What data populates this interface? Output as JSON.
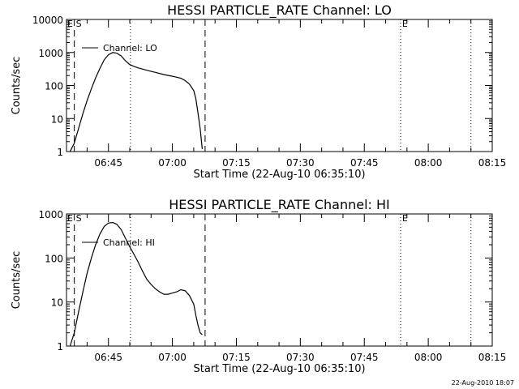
{
  "chart_data": [
    {
      "type": "line",
      "title": "HESSI PARTICLE_RATE Channel: LO",
      "xlabel": "Start Time (22-Aug-10 06:35:10)",
      "ylabel": "Counts/sec",
      "y_scale": "log",
      "ylim": [
        1,
        10000
      ],
      "y_ticks": [
        {
          "value": 1,
          "label": "1"
        },
        {
          "value": 10,
          "label": "10"
        },
        {
          "value": 100,
          "label": "100"
        },
        {
          "value": 1000,
          "label": "1000"
        },
        {
          "value": 10000,
          "label": "10000"
        }
      ],
      "xlim": [
        "06:35:10",
        "08:15:00"
      ],
      "x_ticks": [
        "06:45",
        "07:00",
        "07:15",
        "07:30",
        "07:45",
        "08:00",
        "08:15"
      ],
      "legend": {
        "label": "Channel: LO",
        "placement": "top-left"
      },
      "vlines": [
        {
          "time": "06:37:00",
          "style": "dashed",
          "label": "S"
        },
        {
          "time": "06:50:10",
          "style": "dotted",
          "label": ""
        },
        {
          "time": "07:07:40",
          "style": "dashed",
          "label": ""
        },
        {
          "time": "07:53:30",
          "style": "dotted",
          "label": "E"
        },
        {
          "time": "08:10:00",
          "style": "dotted",
          "label": ""
        }
      ],
      "corner_mark": "E",
      "series": [
        {
          "name": "Channel: LO",
          "points": [
            [
              "06:36:00",
              1
            ],
            [
              "06:37:00",
              1.8
            ],
            [
              "06:38:00",
              5
            ],
            [
              "06:39:00",
              14
            ],
            [
              "06:40:00",
              35
            ],
            [
              "06:41:00",
              80
            ],
            [
              "06:42:00",
              170
            ],
            [
              "06:43:00",
              330
            ],
            [
              "06:44:00",
              600
            ],
            [
              "06:45:00",
              850
            ],
            [
              "06:46:00",
              1000
            ],
            [
              "06:47:00",
              950
            ],
            [
              "06:48:00",
              780
            ],
            [
              "06:49:00",
              560
            ],
            [
              "06:50:00",
              430
            ],
            [
              "06:51:00",
              380
            ],
            [
              "06:52:00",
              340
            ],
            [
              "06:54:00",
              290
            ],
            [
              "06:56:00",
              250
            ],
            [
              "06:58:00",
              215
            ],
            [
              "07:00:00",
              190
            ],
            [
              "07:02:00",
              165
            ],
            [
              "07:03:00",
              140
            ],
            [
              "07:04:00",
              110
            ],
            [
              "07:05:00",
              70
            ],
            [
              "07:05:30",
              40
            ],
            [
              "07:06:00",
              15
            ],
            [
              "07:06:30",
              5
            ],
            [
              "07:07:00",
              1.2
            ]
          ]
        }
      ]
    },
    {
      "type": "line",
      "title": "HESSI PARTICLE_RATE Channel: HI",
      "xlabel": "Start Time (22-Aug-10 06:35:10)",
      "ylabel": "Counts/sec",
      "y_scale": "log",
      "ylim": [
        1,
        1000
      ],
      "y_ticks": [
        {
          "value": 1,
          "label": "1"
        },
        {
          "value": 10,
          "label": "10"
        },
        {
          "value": 100,
          "label": "100"
        },
        {
          "value": 1000,
          "label": "1000"
        }
      ],
      "xlim": [
        "06:35:10",
        "08:15:00"
      ],
      "x_ticks": [
        "06:45",
        "07:00",
        "07:15",
        "07:30",
        "07:45",
        "08:00",
        "08:15"
      ],
      "legend": {
        "label": "Channel: HI",
        "placement": "top-left"
      },
      "vlines": [
        {
          "time": "06:37:00",
          "style": "dashed",
          "label": "S"
        },
        {
          "time": "06:50:10",
          "style": "dotted",
          "label": ""
        },
        {
          "time": "07:07:40",
          "style": "dashed",
          "label": ""
        },
        {
          "time": "07:53:30",
          "style": "dotted",
          "label": "E"
        },
        {
          "time": "08:10:00",
          "style": "dotted",
          "label": ""
        }
      ],
      "corner_mark": "E",
      "series": [
        {
          "name": "Channel: HI",
          "points": [
            [
              "06:36:00",
              1
            ],
            [
              "06:37:00",
              2
            ],
            [
              "06:38:00",
              6
            ],
            [
              "06:39:00",
              17
            ],
            [
              "06:40:00",
              45
            ],
            [
              "06:41:00",
              100
            ],
            [
              "06:42:00",
              200
            ],
            [
              "06:43:00",
              350
            ],
            [
              "06:44:00",
              520
            ],
            [
              "06:45:00",
              620
            ],
            [
              "06:46:00",
              640
            ],
            [
              "06:47:00",
              580
            ],
            [
              "06:48:00",
              440
            ],
            [
              "06:49:00",
              280
            ],
            [
              "06:50:00",
              180
            ],
            [
              "06:51:00",
              120
            ],
            [
              "06:52:00",
              80
            ],
            [
              "06:53:00",
              50
            ],
            [
              "06:54:00",
              33
            ],
            [
              "06:55:00",
              25
            ],
            [
              "06:56:00",
              20
            ],
            [
              "06:57:00",
              17
            ],
            [
              "06:58:00",
              15
            ],
            [
              "06:59:00",
              15
            ],
            [
              "07:00:00",
              16
            ],
            [
              "07:01:00",
              17
            ],
            [
              "07:02:00",
              19
            ],
            [
              "07:03:00",
              18
            ],
            [
              "07:04:00",
              14
            ],
            [
              "07:05:00",
              9
            ],
            [
              "07:05:30",
              5
            ],
            [
              "07:06:00",
              3
            ],
            [
              "07:06:30",
              2
            ],
            [
              "07:07:00",
              1.8
            ]
          ]
        }
      ]
    }
  ],
  "timestamp": "22-Aug-2010 18:07"
}
